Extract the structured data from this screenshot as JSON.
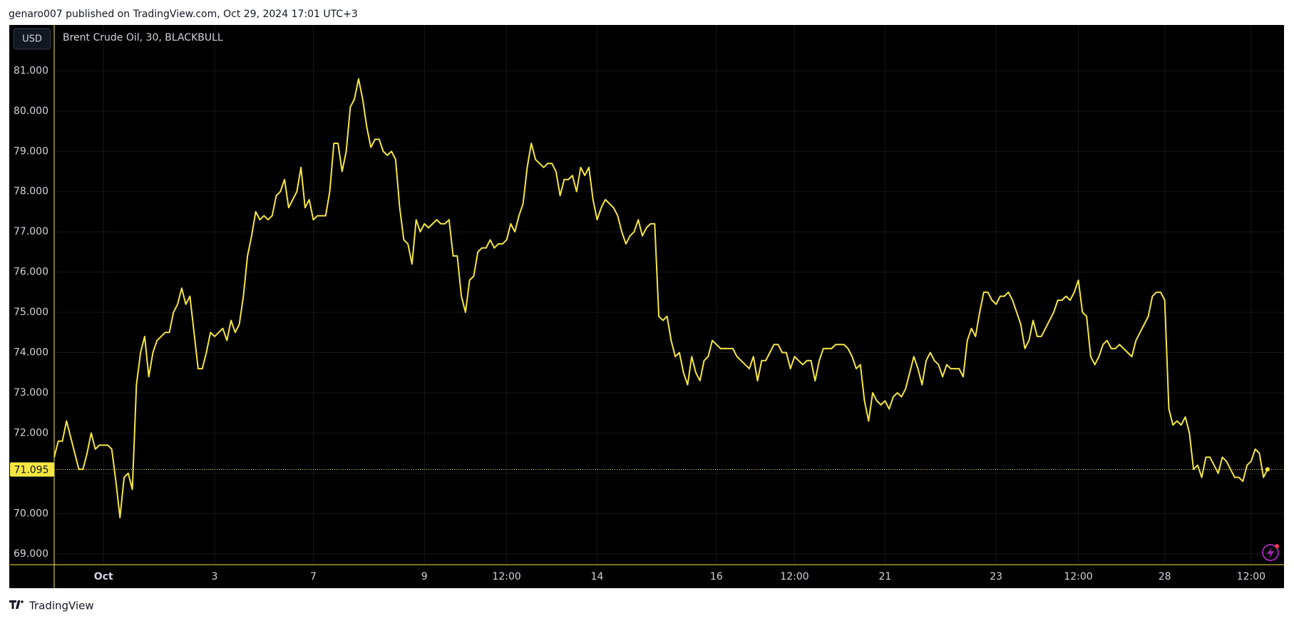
{
  "header": {
    "title": "genaro007 published on TradingView.com, Oct 29, 2024 17:01 UTC+3"
  },
  "chart_data": {
    "type": "line",
    "title": "Brent Crude Oil, 30, BLACKBULL",
    "currency": "USD",
    "series": [
      {
        "name": "Brent Crude Oil",
        "color": "#f5e642",
        "values": [
          71.4,
          71.8,
          71.8,
          72.3,
          71.9,
          71.5,
          71.1,
          71.1,
          71.5,
          72.0,
          71.6,
          71.7,
          71.7,
          71.7,
          71.6,
          70.8,
          69.9,
          70.9,
          71.0,
          70.6,
          73.2,
          74.0,
          74.4,
          73.4,
          74.0,
          74.3,
          74.4,
          74.5,
          74.5,
          75.0,
          75.2,
          75.6,
          75.2,
          75.4,
          74.5,
          73.6,
          73.6,
          74.0,
          74.5,
          74.4,
          74.5,
          74.6,
          74.3,
          74.8,
          74.5,
          74.7,
          75.4,
          76.4,
          76.9,
          77.5,
          77.3,
          77.4,
          77.3,
          77.4,
          77.9,
          78.0,
          78.3,
          77.6,
          77.8,
          78.0,
          78.6,
          77.6,
          77.8,
          77.3,
          77.4,
          77.4,
          77.4,
          78.0,
          79.2,
          79.2,
          78.5,
          79.0,
          80.1,
          80.3,
          80.8,
          80.3,
          79.6,
          79.1,
          79.3,
          79.3,
          79.0,
          78.9,
          79.0,
          78.8,
          77.6,
          76.8,
          76.7,
          76.2,
          77.3,
          77.0,
          77.2,
          77.1,
          77.2,
          77.3,
          77.2,
          77.2,
          77.3,
          76.4,
          76.4,
          75.4,
          75.0,
          75.8,
          75.9,
          76.5,
          76.6,
          76.6,
          76.8,
          76.6,
          76.7,
          76.7,
          76.8,
          77.2,
          77.0,
          77.4,
          77.7,
          78.6,
          79.2,
          78.8,
          78.7,
          78.6,
          78.7,
          78.7,
          78.5,
          77.9,
          78.3,
          78.3,
          78.4,
          78.0,
          78.6,
          78.4,
          78.6,
          77.8,
          77.3,
          77.6,
          77.8,
          77.7,
          77.6,
          77.4,
          77.0,
          76.7,
          76.9,
          77.0,
          77.3,
          76.9,
          77.1,
          77.2,
          77.2,
          74.9,
          74.8,
          74.9,
          74.3,
          73.9,
          74.0,
          73.5,
          73.2,
          73.9,
          73.5,
          73.3,
          73.8,
          73.9,
          74.3,
          74.2,
          74.1,
          74.1,
          74.1,
          74.1,
          73.9,
          73.8,
          73.7,
          73.6,
          73.9,
          73.3,
          73.8,
          73.8,
          74.0,
          74.2,
          74.2,
          74.0,
          74.0,
          73.6,
          73.9,
          73.8,
          73.7,
          73.8,
          73.8,
          73.3,
          73.8,
          74.1,
          74.1,
          74.1,
          74.2,
          74.2,
          74.2,
          74.1,
          73.9,
          73.6,
          73.7,
          72.8,
          72.3,
          73.0,
          72.8,
          72.7,
          72.8,
          72.6,
          72.9,
          73.0,
          72.9,
          73.1,
          73.5,
          73.9,
          73.6,
          73.2,
          73.8,
          74.0,
          73.8,
          73.7,
          73.4,
          73.7,
          73.6,
          73.6,
          73.6,
          73.4,
          74.3,
          74.6,
          74.4,
          75.0,
          75.5,
          75.5,
          75.3,
          75.2,
          75.4,
          75.4,
          75.5,
          75.3,
          75.0,
          74.7,
          74.1,
          74.3,
          74.8,
          74.4,
          74.4,
          74.6,
          74.8,
          75.0,
          75.3,
          75.3,
          75.4,
          75.3,
          75.5,
          75.8,
          75.0,
          74.9,
          73.9,
          73.7,
          73.9,
          74.2,
          74.3,
          74.1,
          74.1,
          74.2,
          74.1,
          74.0,
          73.9,
          74.3,
          74.5,
          74.7,
          74.9,
          75.4,
          75.5,
          75.5,
          75.3,
          72.6,
          72.2,
          72.3,
          72.2,
          72.4,
          72.0,
          71.1,
          71.2,
          70.9,
          71.4,
          71.4,
          71.2,
          71.0,
          71.4,
          71.3,
          71.1,
          70.9,
          70.9,
          70.8,
          71.2,
          71.3,
          71.6,
          71.5,
          70.9,
          71.1
        ]
      }
    ],
    "last_price": 71.095,
    "xlim": [
      0,
      299
    ],
    "xticks": [
      {
        "value": 12,
        "label": "Oct"
      },
      {
        "value": 39,
        "label": "3"
      },
      {
        "value": 63,
        "label": "7"
      },
      {
        "value": 90,
        "label": "9"
      },
      {
        "value": 110,
        "label": "12:00"
      },
      {
        "value": 132,
        "label": "14"
      },
      {
        "value": 161,
        "label": "16"
      },
      {
        "value": 180,
        "label": "12:00"
      },
      {
        "value": 202,
        "label": "21"
      },
      {
        "value": 229,
        "label": "23"
      },
      {
        "value": 249,
        "label": "12:00"
      },
      {
        "value": 270,
        "label": "28"
      },
      {
        "value": 291,
        "label": "12:00"
      }
    ],
    "ylim": [
      68.73,
      82.14
    ],
    "yticks": [
      {
        "value": 69,
        "label": "69.000"
      },
      {
        "value": 70,
        "label": "70.000"
      },
      {
        "value": 71,
        "label": "71.000"
      },
      {
        "value": 72,
        "label": "72.000"
      },
      {
        "value": 73,
        "label": "73.000"
      },
      {
        "value": 74,
        "label": "74.000"
      },
      {
        "value": 75,
        "label": "75.000"
      },
      {
        "value": 76,
        "label": "76.000"
      },
      {
        "value": 77,
        "label": "77.000"
      },
      {
        "value": 78,
        "label": "78.000"
      },
      {
        "value": 79,
        "label": "79.000"
      },
      {
        "value": 80,
        "label": "80.000"
      },
      {
        "value": 81,
        "label": "81.000"
      }
    ],
    "grid": true
  },
  "footer": {
    "brand": "TradingView"
  }
}
